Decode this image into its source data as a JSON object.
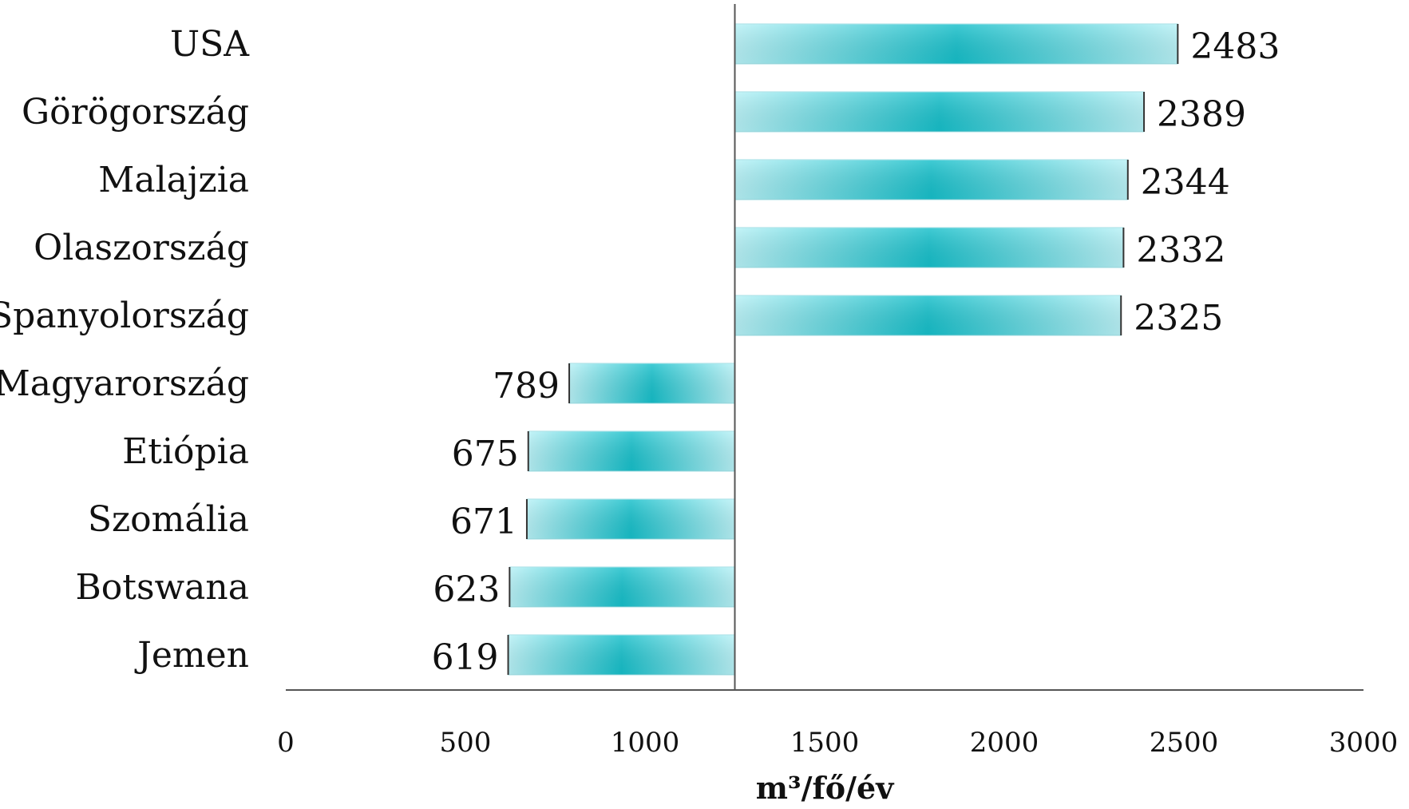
{
  "chart_data": {
    "type": "bar",
    "orientation": "horizontal",
    "baseline": 1250,
    "categories": [
      "USA",
      "Görögország",
      "Malajzia",
      "Olaszország",
      "Spanyolország",
      "Magyarország",
      "Etiópia",
      "Szomália",
      "Botswana",
      "Jemen"
    ],
    "values": [
      2483,
      2389,
      2344,
      2332,
      2325,
      789,
      675,
      671,
      623,
      619
    ],
    "xlabel": "m³/fő/év",
    "xlim": [
      0,
      3000
    ],
    "xticks": [
      0,
      500,
      1000,
      1500,
      2000,
      2500,
      3000
    ],
    "grid": false,
    "legend": "none",
    "colors": {
      "bar_edge": "#b8f2f7",
      "bar_center": "#17c0cb",
      "text": "#111111",
      "axis": "#555555"
    }
  }
}
